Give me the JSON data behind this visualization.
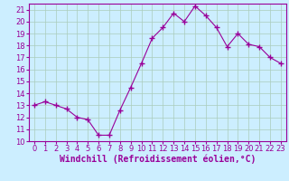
{
  "x": [
    0,
    1,
    2,
    3,
    4,
    5,
    6,
    7,
    8,
    9,
    10,
    11,
    12,
    13,
    14,
    15,
    16,
    17,
    18,
    19,
    20,
    21,
    22,
    23
  ],
  "y": [
    13.0,
    13.3,
    13.0,
    12.7,
    12.0,
    11.8,
    10.5,
    10.5,
    12.6,
    14.5,
    16.5,
    18.6,
    19.5,
    20.7,
    20.0,
    21.3,
    20.5,
    19.5,
    17.9,
    19.0,
    18.1,
    17.9,
    17.0,
    16.5
  ],
  "ylim": [
    10,
    21.5
  ],
  "yticks": [
    10,
    11,
    12,
    13,
    14,
    15,
    16,
    17,
    18,
    19,
    20,
    21
  ],
  "xticks": [
    0,
    1,
    2,
    3,
    4,
    5,
    6,
    7,
    8,
    9,
    10,
    11,
    12,
    13,
    14,
    15,
    16,
    17,
    18,
    19,
    20,
    21,
    22,
    23
  ],
  "xlabel": "Windchill (Refroidissement éolien,°C)",
  "line_color": "#990099",
  "marker": "+",
  "bg_color": "#cceeff",
  "grid_color": "#aaccbb",
  "tick_fontsize": 6,
  "label_fontsize": 7
}
